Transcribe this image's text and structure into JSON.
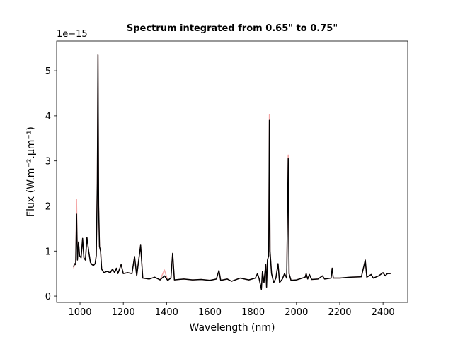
{
  "chart_data": {
    "type": "line",
    "title": "Spectrum integrated from 0.65\" to 0.75\"",
    "x_label": "Wavelength (nm)",
    "y_label": "Flux (W.m⁻².μm⁻¹)",
    "y_offset_label": "1e−15",
    "xlim": [
      892,
      2514
    ],
    "ylim": [
      -0.14,
      5.66
    ],
    "xticks": [
      1000,
      1200,
      1400,
      1600,
      1800,
      2000,
      2200,
      2400
    ],
    "yticks": [
      0,
      1,
      2,
      3,
      4,
      5
    ],
    "x": [
      970,
      975,
      980,
      984,
      988,
      993,
      998,
      1005,
      1012,
      1018,
      1025,
      1032,
      1040,
      1048,
      1055,
      1062,
      1070,
      1075,
      1080,
      1083,
      1086,
      1090,
      1095,
      1100,
      1110,
      1125,
      1140,
      1150,
      1160,
      1168,
      1175,
      1190,
      1200,
      1220,
      1240,
      1252,
      1262,
      1280,
      1290,
      1320,
      1345,
      1370,
      1390,
      1405,
      1420,
      1428,
      1436,
      1480,
      1520,
      1560,
      1600,
      1630,
      1642,
      1650,
      1680,
      1700,
      1740,
      1780,
      1810,
      1820,
      1828,
      1838,
      1843,
      1850,
      1858,
      1862,
      1866,
      1872,
      1875,
      1878,
      1885,
      1895,
      1905,
      1915,
      1922,
      1935,
      1945,
      1955,
      1962,
      1966,
      1975,
      2000,
      2040,
      2045,
      2052,
      2060,
      2070,
      2100,
      2120,
      2130,
      2160,
      2165,
      2170,
      2200,
      2250,
      2300,
      2318,
      2325,
      2345,
      2355,
      2380,
      2400,
      2410,
      2420,
      2435
    ],
    "series": [
      {
        "color": "#f4a6a6",
        "values": [
          0.62,
          0.7,
          0.7,
          2.15,
          0.8,
          1.2,
          0.9,
          0.85,
          1.28,
          0.85,
          0.8,
          1.3,
          1.0,
          0.75,
          0.7,
          0.68,
          0.72,
          0.9,
          2.5,
          5.35,
          2.0,
          1.1,
          1.0,
          0.6,
          0.52,
          0.55,
          0.52,
          0.6,
          0.52,
          0.62,
          0.5,
          0.7,
          0.5,
          0.52,
          0.5,
          0.88,
          0.45,
          1.13,
          0.4,
          0.38,
          0.42,
          0.36,
          0.58,
          0.35,
          0.4,
          0.95,
          0.36,
          0.38,
          0.36,
          0.37,
          0.35,
          0.38,
          0.57,
          0.35,
          0.38,
          0.33,
          0.4,
          0.36,
          0.4,
          0.5,
          0.38,
          0.15,
          0.55,
          0.3,
          0.7,
          0.2,
          0.8,
          0.9,
          4.02,
          1.0,
          0.5,
          0.3,
          0.4,
          0.72,
          0.3,
          0.38,
          0.5,
          0.4,
          3.13,
          0.5,
          0.35,
          0.36,
          0.42,
          0.5,
          0.38,
          0.48,
          0.37,
          0.38,
          0.45,
          0.38,
          0.4,
          0.62,
          0.4,
          0.4,
          0.42,
          0.43,
          0.8,
          0.42,
          0.48,
          0.4,
          0.45,
          0.52,
          0.45,
          0.5,
          0.5
        ]
      },
      {
        "color": "#000000",
        "values": [
          0.65,
          0.72,
          0.7,
          1.82,
          0.8,
          1.2,
          0.9,
          0.85,
          1.28,
          0.85,
          0.8,
          1.3,
          1.0,
          0.75,
          0.7,
          0.68,
          0.72,
          0.9,
          2.5,
          5.35,
          2.0,
          1.1,
          1.0,
          0.6,
          0.52,
          0.55,
          0.52,
          0.6,
          0.52,
          0.62,
          0.5,
          0.7,
          0.5,
          0.52,
          0.5,
          0.88,
          0.45,
          1.13,
          0.4,
          0.38,
          0.42,
          0.36,
          0.45,
          0.35,
          0.4,
          0.95,
          0.36,
          0.38,
          0.36,
          0.37,
          0.35,
          0.38,
          0.57,
          0.35,
          0.38,
          0.33,
          0.4,
          0.36,
          0.4,
          0.5,
          0.38,
          0.15,
          0.55,
          0.3,
          0.7,
          0.2,
          0.8,
          0.9,
          3.9,
          1.0,
          0.5,
          0.3,
          0.4,
          0.72,
          0.3,
          0.38,
          0.5,
          0.4,
          3.05,
          0.5,
          0.35,
          0.36,
          0.42,
          0.5,
          0.38,
          0.48,
          0.37,
          0.38,
          0.45,
          0.38,
          0.4,
          0.62,
          0.4,
          0.4,
          0.42,
          0.43,
          0.8,
          0.42,
          0.48,
          0.4,
          0.45,
          0.52,
          0.45,
          0.5,
          0.5
        ]
      }
    ]
  }
}
